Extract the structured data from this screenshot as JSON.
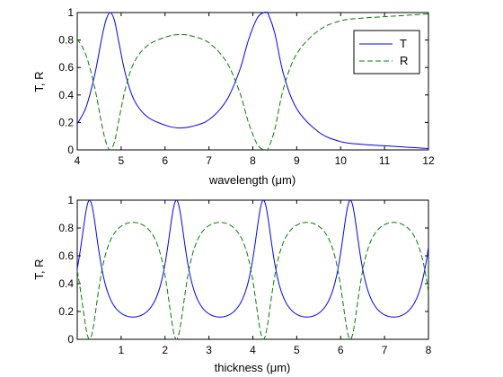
{
  "chart_data": [
    {
      "type": "line",
      "xlabel": "wavelength (μm)",
      "ylabel": "T, R",
      "xlim": [
        4,
        12
      ],
      "ylim": [
        0,
        1
      ],
      "xticks": [
        4,
        5,
        6,
        7,
        8,
        9,
        10,
        11,
        12
      ],
      "yticks": [
        0,
        0.2,
        0.4,
        0.6,
        0.8,
        1
      ],
      "xtick_labels": [
        "4",
        "5",
        "6",
        "7",
        "8",
        "9",
        "10",
        "11",
        "12"
      ],
      "ytick_labels": [
        "0",
        "0.2",
        "0.4",
        "0.6",
        "0.8",
        "1"
      ],
      "grid": false,
      "legend_position": "top-right",
      "series": [
        {
          "name": "T",
          "color": "#0000ff",
          "style": "solid",
          "x": [
            4.0,
            4.2,
            4.4,
            4.55,
            4.65,
            4.75,
            4.85,
            4.95,
            5.1,
            5.3,
            5.6,
            6.0,
            6.3,
            6.6,
            7.0,
            7.4,
            7.7,
            7.9,
            8.1,
            8.25,
            8.3,
            8.35,
            8.5,
            8.7,
            9.0,
            9.5,
            10.0,
            10.5,
            11.0,
            11.5,
            12.0
          ],
          "y": [
            0.19,
            0.31,
            0.55,
            0.8,
            0.94,
            1.0,
            0.94,
            0.78,
            0.55,
            0.36,
            0.24,
            0.18,
            0.16,
            0.17,
            0.22,
            0.36,
            0.58,
            0.8,
            0.96,
            1.0,
            1.0,
            0.99,
            0.85,
            0.55,
            0.3,
            0.13,
            0.06,
            0.04,
            0.03,
            0.02,
            0.01
          ]
        },
        {
          "name": "R",
          "color": "#007f00",
          "style": "dashed",
          "x": [
            4.0,
            4.2,
            4.4,
            4.55,
            4.65,
            4.75,
            4.85,
            4.95,
            5.1,
            5.3,
            5.6,
            6.0,
            6.3,
            6.6,
            7.0,
            7.4,
            7.7,
            7.9,
            8.1,
            8.25,
            8.3,
            8.35,
            8.5,
            8.7,
            9.0,
            9.5,
            10.0,
            10.5,
            11.0,
            11.5,
            12.0
          ],
          "y": [
            0.81,
            0.69,
            0.45,
            0.2,
            0.06,
            0.0,
            0.06,
            0.22,
            0.45,
            0.64,
            0.76,
            0.82,
            0.84,
            0.83,
            0.78,
            0.64,
            0.42,
            0.2,
            0.04,
            0.0,
            0.0,
            0.01,
            0.15,
            0.45,
            0.7,
            0.87,
            0.94,
            0.96,
            0.97,
            0.98,
            0.99
          ]
        }
      ],
      "legend": {
        "entries": [
          "T",
          "R"
        ]
      }
    },
    {
      "type": "line",
      "xlabel": "thickness (μm)",
      "ylabel": "T, R",
      "xlim": [
        0,
        8
      ],
      "ylim": [
        0,
        1
      ],
      "xticks": [
        1,
        2,
        3,
        4,
        5,
        6,
        7,
        8
      ],
      "yticks": [
        0,
        0.2,
        0.4,
        0.6,
        0.8,
        1
      ],
      "xtick_labels": [
        "1",
        "2",
        "3",
        "4",
        "5",
        "6",
        "7",
        "8"
      ],
      "ytick_labels": [
        "0",
        "0.2",
        "0.4",
        "0.6",
        "0.8",
        "1"
      ],
      "grid": false,
      "period_um": 1.98,
      "phase_um": 0.28,
      "t_min": 0.16,
      "r_max": 0.84,
      "series": [
        {
          "name": "T",
          "color": "#0000ff",
          "style": "solid"
        },
        {
          "name": "R",
          "color": "#007f00",
          "style": "dashed"
        }
      ]
    }
  ]
}
